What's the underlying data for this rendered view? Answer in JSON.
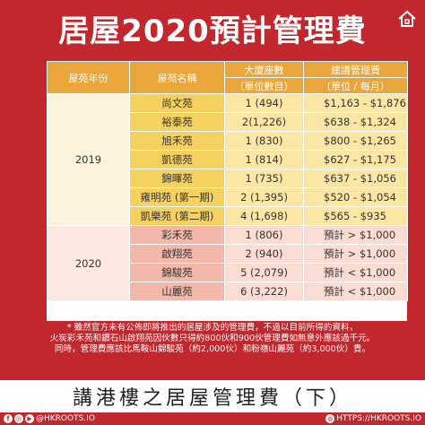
{
  "title": "居屋2020預計管理費",
  "table": {
    "headers": {
      "year": "屋苑年份",
      "name": "屋苑名稱",
      "units": "大廈座數",
      "units_sub": "（單位數目）",
      "fee": "建議管理費",
      "fee_sub": "（單位 / 每月）"
    },
    "groups": [
      {
        "year": "2019",
        "rows": [
          {
            "name": "尚文苑",
            "units": "1 (494)",
            "fee": "$1,163 - $1,876"
          },
          {
            "name": "裕泰苑",
            "units": "2(1,226)",
            "fee": "$638 - $1,324"
          },
          {
            "name": "旭禾苑",
            "units": "1 (830)",
            "fee": "$800 - $1,265"
          },
          {
            "name": "凱德苑",
            "units": "1 (814)",
            "fee": "$627 - $1,175"
          },
          {
            "name": "錦暉苑",
            "units": "1 (735)",
            "fee": "$637 - $1,056"
          },
          {
            "name": "雍明苑 (第一期)",
            "units": "2 (1,395)",
            "fee": "$520 - $1,054"
          },
          {
            "name": "凱樂苑 (第二期)",
            "units": "4 (1,698)",
            "fee": "$565 - $935"
          }
        ]
      },
      {
        "year": "2020",
        "rows": [
          {
            "name": "彩禾苑",
            "units": "1 (806)",
            "fee": "預計 > $1,000"
          },
          {
            "name": "啟翔苑",
            "units": "2 (940)",
            "fee": "預計 > $1,000"
          },
          {
            "name": "錦駿苑",
            "units": "5 (2,079)",
            "fee": "預計 < $1,000"
          },
          {
            "name": "山麗苑",
            "units": "6 (3,222)",
            "fee": "預計 < $1,000"
          }
        ]
      }
    ]
  },
  "footnote": [
    "* 雖然官方未有公佈即將推出的居屋涉及的管理費，不過以目前所得的資料，",
    "火炭彩禾苑和鑽石山啟翔苑因伙數只得約800伙和900伙管理費如無意外應該過千元。",
    "同時，管理費應該比馬鞍山錦駿苑（約2,000伙）和粉嶺山麗苑（約3,000伙）貴。"
  ],
  "banner": "講港樓之居屋管理費（下）",
  "social": {
    "handles": "@HKROOTS.IO",
    "website": "HTTPS://HKROOTS.IO",
    "icons": [
      "facebook-icon",
      "instagram-icon",
      "youtube-icon",
      "globe-icon"
    ]
  },
  "colors": {
    "background": "#c1272d",
    "header": "#e9a63b",
    "row2019_name": "#f5d15f",
    "row2019_value": "#fbe7a3",
    "row2020_name": "#f3b8a9",
    "row2020_value": "#fbdcd2"
  }
}
